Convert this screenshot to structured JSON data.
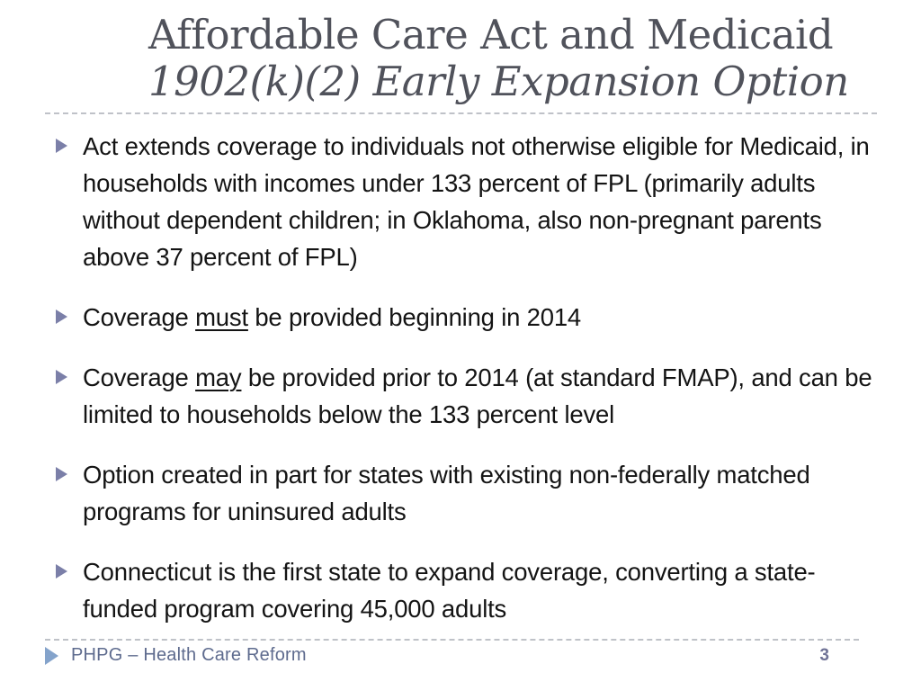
{
  "title": {
    "line1": "Affordable Care Act and Medicaid",
    "line2": "1902(k)(2) Early Expansion Option"
  },
  "bullets": [
    {
      "text": "Act extends coverage to individuals not otherwise eligible for Medicaid, in households with incomes under 133 percent of FPL (primarily adults without dependent children; in Oklahoma, also non-pregnant parents above 37 percent of FPL)"
    },
    {
      "pre": "Coverage ",
      "underlined": "must",
      "post": " be provided beginning in 2014"
    },
    {
      "pre": "Coverage ",
      "underlined": "may",
      "post": " be provided prior to 2014 (at standard FMAP), and can be limited to households below the 133 percent level"
    },
    {
      "text": "Option created in part for states with existing non-federally matched programs for uninsured adults"
    },
    {
      "text": "Connecticut is the first state to expand coverage, converting a state-funded program covering 45,000 adults"
    }
  ],
  "footer": {
    "text": "PHPG – Health Care Reform",
    "page_number": "3"
  },
  "icons": {
    "bullet_icon": "right-triangle",
    "footer_icon": "right-triangle"
  },
  "colors": {
    "title": "#50525B",
    "body_text": "#141414",
    "bullet_accent": "#7B7FA8",
    "footer_accent": "#84A3CB",
    "footer_text": "#5E6B8E",
    "page_number": "#6F7296",
    "divider": "#BFC2C8",
    "background": "#FFFFFF"
  }
}
